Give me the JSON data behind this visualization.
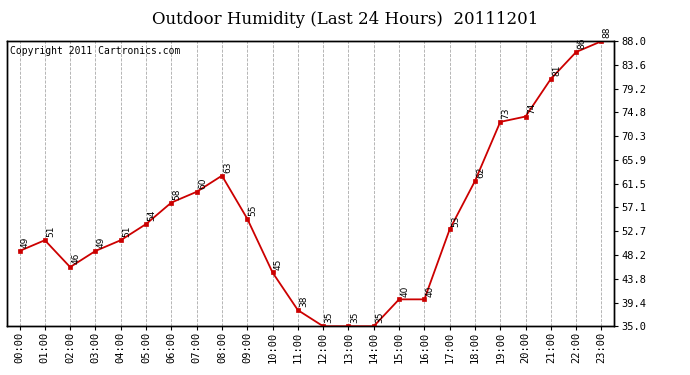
{
  "title": "Outdoor Humidity (Last 24 Hours)  20111201",
  "copyright_text": "Copyright 2011 Cartronics.com",
  "x_labels": [
    "00:00",
    "01:00",
    "02:00",
    "03:00",
    "04:00",
    "05:00",
    "06:00",
    "07:00",
    "08:00",
    "09:00",
    "10:00",
    "11:00",
    "12:00",
    "13:00",
    "14:00",
    "15:00",
    "16:00",
    "17:00",
    "18:00",
    "19:00",
    "20:00",
    "21:00",
    "22:00",
    "23:00"
  ],
  "x_values": [
    0,
    1,
    2,
    3,
    4,
    5,
    6,
    7,
    8,
    9,
    10,
    11,
    12,
    13,
    14,
    15,
    16,
    17,
    18,
    19,
    20,
    21,
    22,
    23
  ],
  "y_values": [
    49,
    51,
    46,
    49,
    51,
    54,
    58,
    60,
    63,
    55,
    45,
    38,
    35,
    35,
    35,
    40,
    40,
    53,
    62,
    73,
    74,
    81,
    86,
    88
  ],
  "y_labels": [
    35.0,
    39.4,
    43.8,
    48.2,
    52.7,
    57.1,
    61.5,
    65.9,
    70.3,
    74.8,
    79.2,
    83.6,
    88.0
  ],
  "ylim": [
    35.0,
    88.0
  ],
  "line_color": "#cc0000",
  "marker_color": "#cc0000",
  "bg_color": "#ffffff",
  "grid_color": "#aaaaaa",
  "title_fontsize": 12,
  "copyright_fontsize": 7,
  "tick_fontsize": 7.5,
  "annot_fontsize": 6.5
}
